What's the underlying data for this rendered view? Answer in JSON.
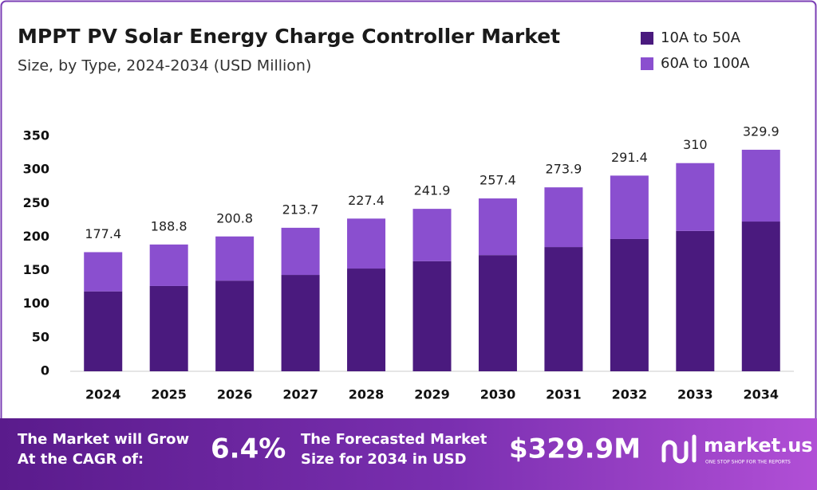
{
  "chart_data": {
    "type": "stacked_bar",
    "title": "MPPT PV Solar Energy Charge Controller Market",
    "subtitle": "Size, by Type, 2024-2034 (USD Million)",
    "categories": [
      "2024",
      "2025",
      "2026",
      "2027",
      "2028",
      "2029",
      "2030",
      "2031",
      "2032",
      "2033",
      "2034"
    ],
    "series": [
      {
        "name": "10A to 50A",
        "color": "#4a1a7e",
        "values": [
          119,
          127,
          135,
          143.5,
          153,
          164,
          173,
          185,
          197,
          209,
          223
        ]
      },
      {
        "name": "60A to 100A",
        "color": "#8a4fcf",
        "values": [
          58.4,
          61.8,
          65.8,
          70.2,
          74.4,
          77.9,
          84.4,
          88.9,
          94.4,
          101,
          106.9
        ]
      }
    ],
    "totals": [
      177.4,
      188.8,
      200.8,
      213.7,
      227.4,
      241.9,
      257.4,
      273.9,
      291.4,
      310.0,
      329.9
    ],
    "ylim": [
      0,
      350
    ],
    "yticks": [
      0,
      50,
      100,
      150,
      200,
      250,
      300,
      350
    ],
    "grid": false,
    "legend": "top-right"
  },
  "footer": {
    "cagr_line1": "The Market will Grow",
    "cagr_line2": "At the CAGR of:",
    "cagr": "6.4%",
    "forecast_line1": "The Forecasted Market",
    "forecast_line2": "Size for 2034 in USD",
    "forecast": "$329.9M",
    "brand": "market.us",
    "tagline": "ONE STOP SHOP FOR THE REPORTS"
  }
}
